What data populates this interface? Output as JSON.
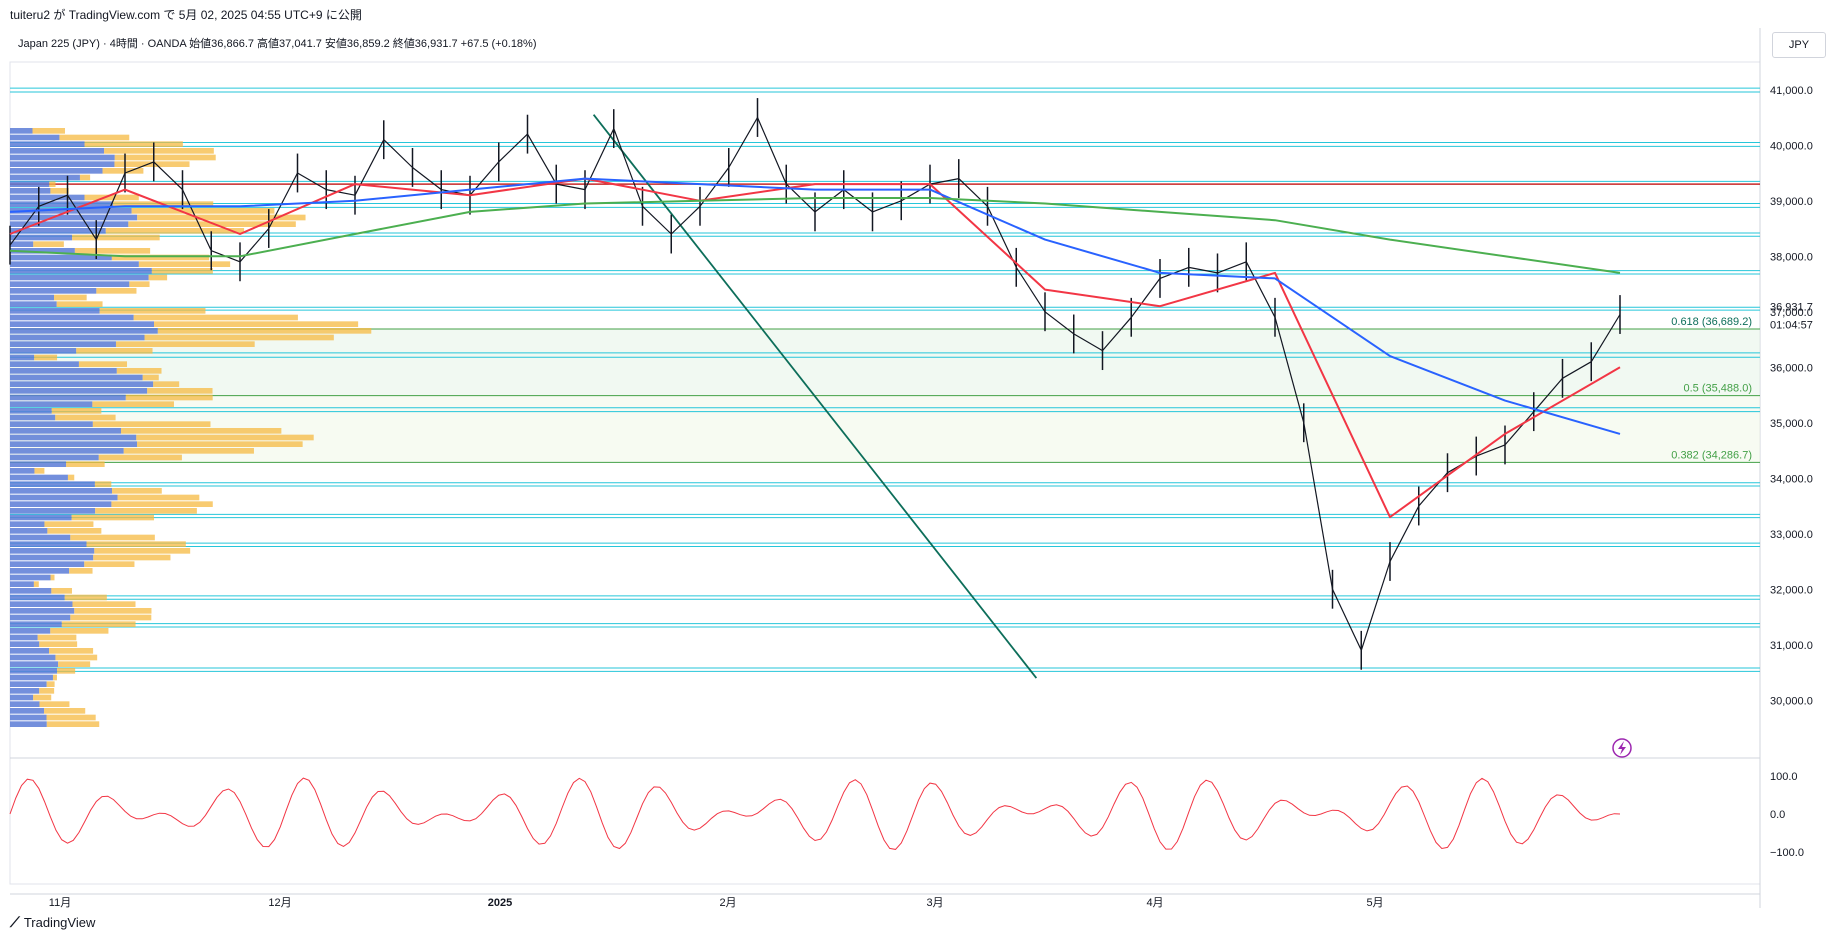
{
  "header": {
    "published": "tuiteru2 が TradingView.com で 5月 02, 2025 04:55 UTC+9 に公開",
    "symbol_line": "Japan 225 (JPY) · 4時間 · OANDA  始値36,866.7  高値37,041.7  安値36,859.2  終値36,931.7  +67.5 (+0.18%)",
    "currency": "JPY"
  },
  "colors": {
    "grid_line": "#26c6da",
    "trendline": "#0d6e5a",
    "ma_red": "#f23645",
    "ma_blue": "#2962ff",
    "ma_green": "#4caf50",
    "fib_green": "#43a047",
    "vp_blue": "#5b7bd6",
    "vp_orange": "#f5b942",
    "osc": "#f23645",
    "price_line": "#ef5350"
  },
  "chart_data": {
    "type": "line",
    "ylim": [
      29500,
      41500
    ],
    "y_ticks": [
      "41,000.0",
      "40,000.0",
      "39,000.0",
      "38,000.0",
      "37,000.0",
      "36,000.0",
      "35,000.0",
      "34,000.0",
      "33,000.0",
      "32,000.0",
      "31,000.0",
      "30,000.0"
    ],
    "y_tick_values": [
      41000,
      40000,
      39000,
      38000,
      37000,
      36000,
      35000,
      34000,
      33000,
      32000,
      31000,
      30000
    ],
    "x_ticks": [
      "11月",
      "12月",
      "2025",
      "2月",
      "3月",
      "4月",
      "5月"
    ],
    "price_label": "36,931.7",
    "countdown_label": "01:04:57",
    "fib_levels": [
      {
        "label": "0.618 (36,689.2)",
        "value": 36689.2
      },
      {
        "label": "0.5 (35,488.0)",
        "value": 35488.0
      },
      {
        "label": "0.382 (34,286.7)",
        "value": 34286.7
      }
    ],
    "horizontal_levels": [
      41030,
      40960,
      40050,
      39980,
      39350,
      38950,
      38880,
      38420,
      38360,
      37740,
      37680,
      37080,
      37030,
      36260,
      36180,
      35270,
      35200,
      33920,
      33860,
      33350,
      33290,
      32830,
      32770,
      31880,
      31820,
      31380,
      31320,
      30580,
      30520
    ],
    "red_level": 39300,
    "series": [
      {
        "name": "",
        "x": [
          0,
          10,
          20,
          30,
          40,
          50,
          60,
          70,
          80,
          90,
          100,
          110,
          120,
          130,
          140,
          150,
          160,
          170,
          180,
          190,
          200,
          210,
          220,
          230,
          240,
          250,
          260,
          270,
          280,
          290,
          300,
          310,
          320,
          330,
          340,
          350,
          360,
          370,
          380,
          390,
          400,
          410,
          420,
          430,
          440,
          450,
          460,
          470,
          480,
          490,
          500,
          510,
          520,
          530,
          540,
          550,
          560
        ],
        "values": [
          38200,
          38900,
          39100,
          38300,
          39500,
          39700,
          39200,
          38100,
          37900,
          38500,
          39500,
          39200,
          39100,
          40100,
          39600,
          39200,
          39100,
          39700,
          40200,
          39300,
          39200,
          40300,
          38900,
          38400,
          38900,
          39600,
          40500,
          39300,
          38800,
          39200,
          38800,
          39000,
          39300,
          39400,
          38900,
          37800,
          37000,
          36600,
          36300,
          36900,
          37600,
          37800,
          37700,
          37900,
          36900,
          35000,
          32000,
          30900,
          32500,
          33500,
          34100,
          34400,
          34600,
          35200,
          35800,
          36100,
          36950
        ]
      },
      {
        "name": "",
        "x": [
          0,
          40,
          80,
          120,
          160,
          200,
          240,
          280,
          320,
          360,
          400,
          440,
          480,
          520,
          560
        ],
        "values": [
          38400,
          39200,
          38400,
          39300,
          39100,
          39400,
          39000,
          39300,
          39300,
          37400,
          37100,
          37700,
          33300,
          34800,
          36000
        ]
      },
      {
        "name": "",
        "x": [
          0,
          40,
          80,
          120,
          160,
          200,
          240,
          280,
          320,
          360,
          400,
          440,
          480,
          520,
          560
        ],
        "values": [
          38800,
          38900,
          38900,
          39000,
          39200,
          39400,
          39300,
          39200,
          39200,
          38300,
          37700,
          37600,
          36200,
          35400,
          34800
        ]
      },
      {
        "name": "",
        "x": [
          0,
          40,
          80,
          120,
          160,
          200,
          240,
          280,
          320,
          360,
          400,
          440,
          480,
          520,
          560
        ],
        "values": [
          38100,
          38000,
          38000,
          38400,
          38800,
          38950,
          39000,
          39050,
          39050,
          38950,
          38800,
          38650,
          38300,
          38000,
          37700
        ]
      }
    ],
    "oscillator": {
      "y_ticks": [
        "100.0",
        "0.0",
        "−100.0"
      ],
      "y_tick_values": [
        100,
        0,
        -100
      ]
    }
  },
  "footer": {
    "brand": "TradingView",
    "brand_mark": "✑"
  }
}
